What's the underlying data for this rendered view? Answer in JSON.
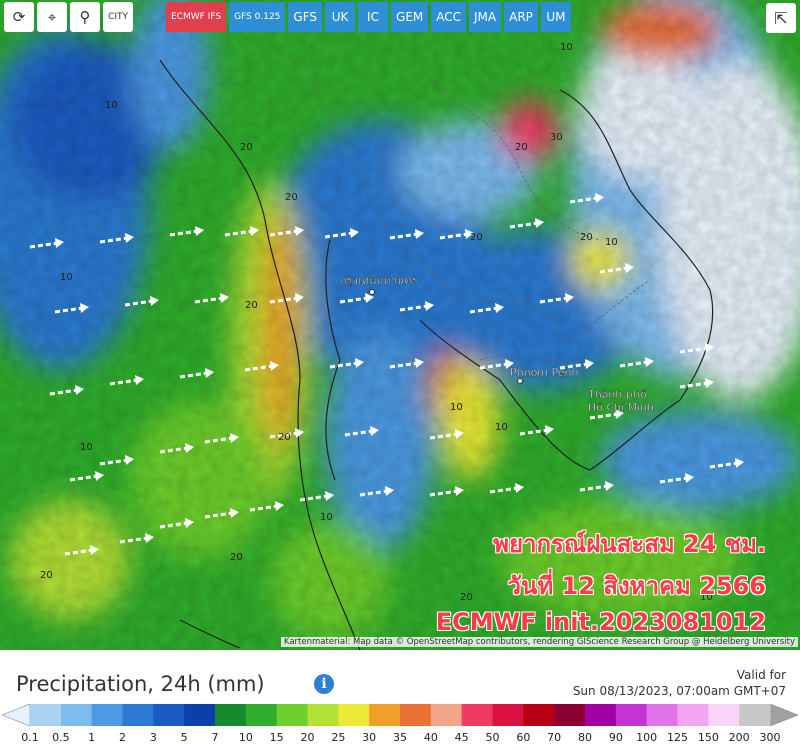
{
  "toolbar": {
    "city": "CITY",
    "models": [
      {
        "label": "ECMWF IFS",
        "active": true
      },
      {
        "label": "GFS 0.125",
        "active": false
      },
      {
        "label": "GFS",
        "active": false
      },
      {
        "label": "UK",
        "active": false
      },
      {
        "label": "IC",
        "active": false
      },
      {
        "label": "GEM",
        "active": false
      },
      {
        "label": "ACC",
        "active": false
      },
      {
        "label": "JMA",
        "active": false
      },
      {
        "label": "ARP",
        "active": false
      },
      {
        "label": "UM",
        "active": false
      }
    ]
  },
  "map": {
    "cities": [
      "กรุงเทพมหานคร",
      "Phnom Penh",
      "Thành phố",
      "Hồ Chí Minh"
    ],
    "contour_labels": [
      "10",
      "20",
      "10",
      "20",
      "20",
      "10",
      "20",
      "10",
      "20",
      "20",
      "10",
      "30",
      "20",
      "10",
      "20",
      "10",
      "10",
      "20",
      "10",
      "20"
    ]
  },
  "overlay": {
    "line1": "พยากรณ์ฝนสะสม 24 ชม.",
    "line2": "วันที่ 12 สิงหาคม 2566",
    "line3": "ECMWF init.2023081012"
  },
  "attribution": "Kartenmaterial: Map data © OpenStreetMap contributors, rendering GIScience Research Group @ Heidelberg University",
  "legend": {
    "title": "Precipitation, 24h (mm)",
    "valid_label": "Valid for",
    "valid_time": "Sun 08/13/2023, 07:00am GMT+07",
    "ticks": [
      0.1,
      0.5,
      1,
      2,
      3,
      5,
      7,
      10,
      15,
      20,
      25,
      30,
      35,
      40,
      45,
      50,
      60,
      70,
      80,
      90,
      100,
      125,
      150,
      200,
      300
    ],
    "colors": [
      "#a9d2f2",
      "#7cbcee",
      "#4c9ae2",
      "#2c7ad2",
      "#1a5cc2",
      "#0c40a8",
      "#178a2e",
      "#2eae2c",
      "#6ccf2c",
      "#b2e034",
      "#ecea36",
      "#f0a028",
      "#ea7034",
      "#f2a688",
      "#f03a64",
      "#dc1040",
      "#b80014",
      "#8c0034",
      "#a000a4",
      "#c434d4",
      "#e074ea",
      "#f2a4f2",
      "#f8d4f8",
      "#c8c8c8"
    ],
    "under_color": "#e8f2fc",
    "over_color": "#a0a0a0"
  }
}
